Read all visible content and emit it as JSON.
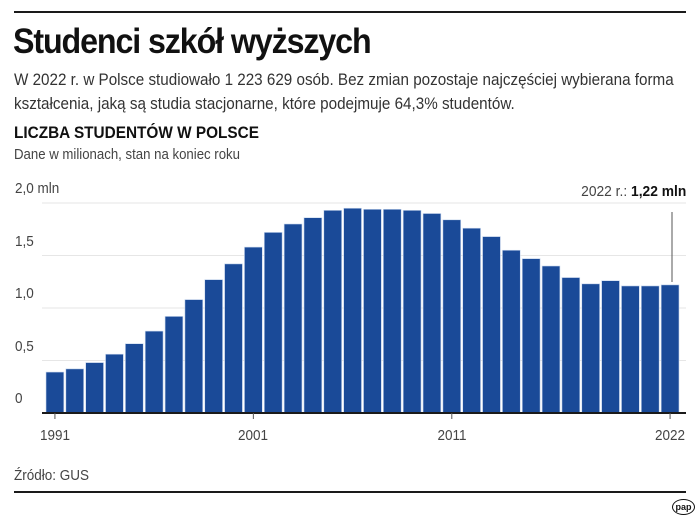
{
  "header": {
    "title": "Studenci szkół wyższych",
    "lead": "W 2022 r. w Polsce studiowało 1 223 629 osób. Bez zmian pozostaje najczęściej wybierana forma kształcenia, jaką są studia stacjonarne, które podejmuje 64,3% studentów."
  },
  "chart": {
    "title": "LICZBA STUDENTÓW W POLSCE",
    "subtitle": "Dane w milionach, stan na koniec roku",
    "annotation_prefix": "2022 r.: ",
    "annotation_value": "1,22 mln",
    "y_ticks": [
      {
        "label": "2,0  mln",
        "value": 2.0
      },
      {
        "label": "1,5",
        "value": 1.5
      },
      {
        "label": "1,0",
        "value": 1.0
      },
      {
        "label": "0,5",
        "value": 0.5
      },
      {
        "label": "0",
        "value": 0
      }
    ],
    "x_ticks": [
      "1991",
      "2001",
      "2011",
      "2022"
    ],
    "colors": {
      "bar": "#1a4a98",
      "bar_gap": "#c9d8ee",
      "grid": "#e6e6e6",
      "axis": "#1a1a1a"
    }
  },
  "footer": {
    "source": "Źródło: GUS",
    "logo": "pap"
  },
  "chart_data": {
    "type": "bar",
    "title": "LICZBA STUDENTÓW W POLSCE",
    "subtitle": "Dane w milionach, stan na koniec roku",
    "xlabel": "",
    "ylabel": "mln",
    "ylim": [
      0,
      2.0
    ],
    "yticks": [
      0,
      0.5,
      1.0,
      1.5,
      2.0
    ],
    "grid": true,
    "legend": null,
    "annotation": "2022 r.: 1,22 mln",
    "categories": [
      "1991",
      "1992",
      "1993",
      "1994",
      "1995",
      "1996",
      "1997",
      "1998",
      "1999",
      "2000",
      "2001",
      "2002",
      "2003",
      "2004",
      "2005",
      "2006",
      "2007",
      "2008",
      "2009",
      "2010",
      "2011",
      "2012",
      "2013",
      "2014",
      "2015",
      "2016",
      "2017",
      "2018",
      "2019",
      "2020",
      "2021",
      "2022"
    ],
    "values": [
      0.39,
      0.42,
      0.48,
      0.56,
      0.66,
      0.78,
      0.92,
      1.08,
      1.27,
      1.42,
      1.58,
      1.72,
      1.8,
      1.86,
      1.93,
      1.95,
      1.94,
      1.94,
      1.93,
      1.9,
      1.84,
      1.76,
      1.68,
      1.55,
      1.47,
      1.4,
      1.29,
      1.23,
      1.26,
      1.21,
      1.21,
      1.22
    ]
  }
}
